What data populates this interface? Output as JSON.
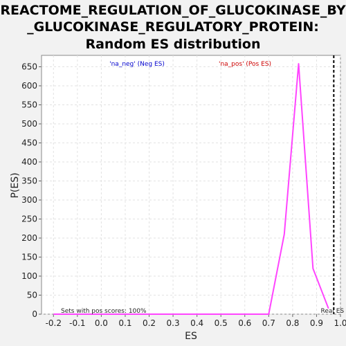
{
  "chart_data": {
    "type": "line",
    "title_lines": [
      "REACTOME_REGULATION_OF_GLUCOKINASE_BY",
      "_GLUCOKINASE_REGULATORY_PROTEIN:",
      "Random ES distribution"
    ],
    "xlabel": "ES",
    "ylabel": "P(ES)",
    "xlim": [
      -0.25,
      1.0
    ],
    "ylim": [
      0,
      680
    ],
    "x_ticks": [
      -0.2,
      -0.1,
      0.0,
      0.1,
      0.2,
      0.3,
      0.4,
      0.5,
      0.6,
      0.7,
      0.8,
      0.9,
      1.0
    ],
    "x_tick_labels": [
      "-0.2",
      "-0.1",
      "0.0",
      "0.1",
      "0.2",
      "0.3",
      "0.4",
      "0.5",
      "0.6",
      "0.7",
      "0.8",
      "0.9",
      "1.0"
    ],
    "y_ticks": [
      0,
      50,
      100,
      150,
      200,
      250,
      300,
      350,
      400,
      450,
      500,
      550,
      600,
      650
    ],
    "y_tick_labels": [
      "0",
      "50",
      "100",
      "150",
      "200",
      "250",
      "300",
      "350",
      "400",
      "450",
      "500",
      "550",
      "600",
      "650"
    ],
    "grid": true,
    "legend": [
      {
        "label": "'na_neg' (Neg ES)",
        "color": "#0000cc"
      },
      {
        "label": "'na_pos' (Pos ES)",
        "color": "#cc0000"
      }
    ],
    "series": [
      {
        "color": "#ff44ff",
        "x": [
          -0.2,
          0.0,
          0.2,
          0.4,
          0.6,
          0.7,
          0.765,
          0.825,
          0.885,
          0.95
        ],
        "y": [
          0,
          0,
          0,
          0,
          0,
          0,
          210,
          658,
          120,
          15
        ]
      }
    ],
    "real_es": {
      "x": 0.972,
      "label": "Real ES",
      "color": "#000000"
    },
    "annotation": "Sets with pos scores: 100%"
  }
}
